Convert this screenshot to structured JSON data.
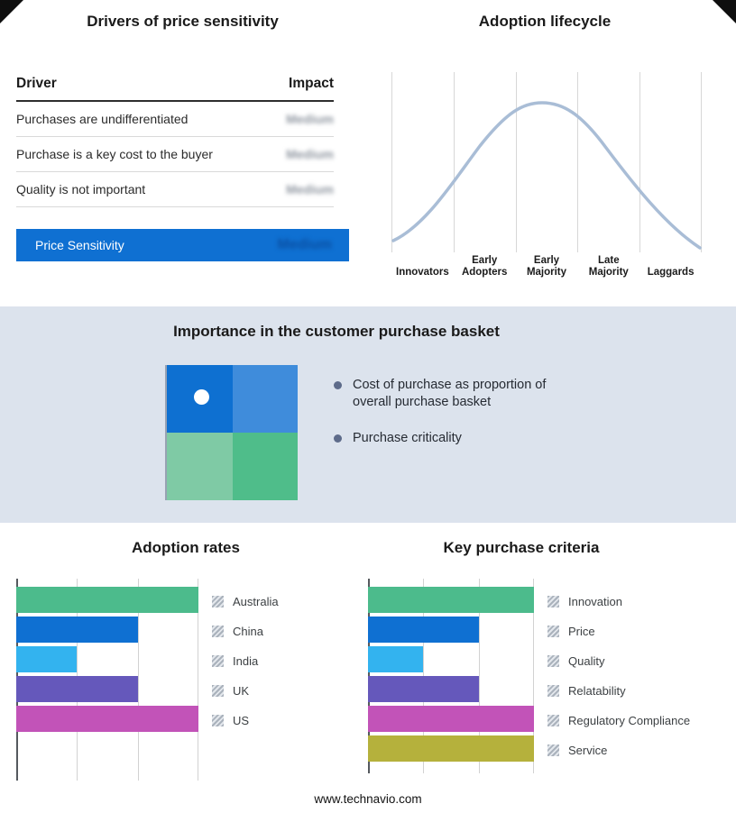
{
  "theme": {
    "highlight_blue": "#0f70d2",
    "section_bg": "#dce3ed",
    "curve_color": "#a9bdd6",
    "redacted_text_gray": "#8f96a0"
  },
  "drivers_panel": {
    "title": "Drivers of price sensitivity",
    "columns": {
      "driver": "Driver",
      "impact": "Impact"
    },
    "rows": [
      {
        "driver": "Purchases are undifferentiated",
        "impact": "Medium"
      },
      {
        "driver": "Purchase is a key cost to the buyer",
        "impact": "Medium"
      },
      {
        "driver": "Quality is not important",
        "impact": "Medium"
      }
    ],
    "summary_row": {
      "label": "Price Sensitivity",
      "impact": "Medium"
    },
    "impact_values_redacted": true
  },
  "lifecycle_panel": {
    "title": "Adoption lifecycle",
    "stages": [
      "Innovators",
      "Early Adopters",
      "Early Majority",
      "Late Majority",
      "Laggards"
    ]
  },
  "basket_panel": {
    "title": "Importance in the customer purchase basket",
    "bullets": [
      "Cost of purchase as proportion of overall purchase basket",
      "Purchase criticality"
    ],
    "matrix": {
      "quadrant_colors": [
        "#0e70d1",
        "#3f8cdb",
        "#7fcaa5",
        "#4fbd8a"
      ],
      "marker_quadrant": "top-left"
    }
  },
  "footer": {
    "url": "www.technavio.com"
  },
  "chart_data": [
    {
      "id": "lifecycle",
      "type": "line",
      "title": "Adoption lifecycle",
      "categories": [
        "Innovators",
        "Early Adopters",
        "Early Majority",
        "Late Majority",
        "Laggards"
      ],
      "values": [
        8,
        52,
        100,
        52,
        8
      ],
      "xlabel": "",
      "ylabel": "",
      "grid": true,
      "note": "Stylized bell adoption curve; values are relative heights (% of peak) at each stage midpoint."
    },
    {
      "id": "adoption_rates",
      "type": "bar",
      "title": "Adoption rates",
      "orientation": "horizontal",
      "xlim": [
        0,
        3
      ],
      "gridlines": [
        0,
        1,
        2,
        3
      ],
      "legend_position": "right",
      "series": [
        {
          "name": "Australia",
          "value": 3,
          "color": "#4cbb8c"
        },
        {
          "name": "China",
          "value": 2,
          "color": "#0f70d2"
        },
        {
          "name": "India",
          "value": 1,
          "color": "#33b3ef"
        },
        {
          "name": "UK",
          "value": 2,
          "color": "#6558bb"
        },
        {
          "name": "US",
          "value": 3,
          "color": "#c253b8"
        }
      ]
    },
    {
      "id": "key_purchase_criteria",
      "type": "bar",
      "title": "Key purchase criteria",
      "orientation": "horizontal",
      "xlim": [
        0,
        3
      ],
      "gridlines": [
        0,
        1,
        2,
        3
      ],
      "legend_position": "right",
      "series": [
        {
          "name": "Innovation",
          "value": 3,
          "color": "#4cbb8c"
        },
        {
          "name": "Price",
          "value": 2,
          "color": "#0f70d2"
        },
        {
          "name": "Quality",
          "value": 1,
          "color": "#33b3ef"
        },
        {
          "name": "Relatability",
          "value": 2,
          "color": "#6558bb"
        },
        {
          "name": "Regulatory Compliance",
          "value": 3,
          "color": "#c253b8"
        },
        {
          "name": "Service",
          "value": 3,
          "color": "#b5b13c"
        }
      ]
    }
  ]
}
